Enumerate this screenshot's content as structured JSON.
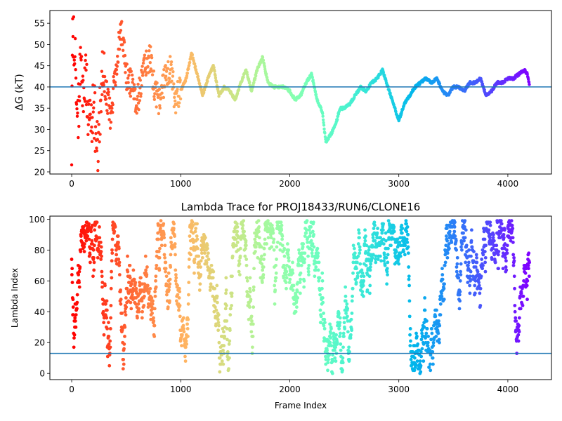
{
  "chart_data": [
    {
      "type": "scatter",
      "title": "",
      "xlabel": "",
      "ylabel": "ΔG (kT)",
      "xlim": [
        -200,
        4400
      ],
      "ylim": [
        19.5,
        58
      ],
      "xticks": [
        0,
        1000,
        2000,
        3000,
        4000
      ],
      "yticks": [
        20,
        25,
        30,
        35,
        40,
        45,
        50,
        55
      ],
      "hline": 40,
      "hline_color": "#1f77b4",
      "colormap": "rainbow (red at frame 0 through cyan to violet at last frame)",
      "n_frames": 4200,
      "grid": false,
      "series": [
        {
          "anchors": [
            [
              0,
              20
            ],
            [
              8,
              56
            ],
            [
              20,
              52
            ],
            [
              40,
              41
            ],
            [
              60,
              32
            ],
            [
              80,
              49
            ],
            [
              100,
              38
            ],
            [
              130,
              42
            ],
            [
              160,
              30
            ],
            [
              200,
              36
            ],
            [
              240,
              25
            ],
            [
              280,
              44
            ],
            [
              320,
              38
            ],
            [
              360,
              33
            ],
            [
              420,
              48
            ],
            [
              460,
              53
            ],
            [
              500,
              43
            ],
            [
              560,
              40
            ],
            [
              600,
              36
            ],
            [
              660,
              44
            ],
            [
              720,
              47
            ],
            [
              760,
              40
            ],
            [
              800,
              37
            ],
            [
              860,
              42
            ],
            [
              900,
              45
            ],
            [
              950,
              37
            ],
            [
              1000,
              39
            ],
            [
              1050,
              42
            ],
            [
              1100,
              48
            ],
            [
              1150,
              43
            ],
            [
              1200,
              38
            ],
            [
              1250,
              42
            ],
            [
              1300,
              45
            ],
            [
              1350,
              38
            ],
            [
              1400,
              40
            ],
            [
              1450,
              39
            ],
            [
              1500,
              37
            ],
            [
              1550,
              41
            ],
            [
              1600,
              44
            ],
            [
              1650,
              39
            ],
            [
              1700,
              44
            ],
            [
              1750,
              47
            ],
            [
              1800,
              41
            ],
            [
              1850,
              40
            ],
            [
              1900,
              40
            ],
            [
              1950,
              40
            ],
            [
              2000,
              39
            ],
            [
              2050,
              37
            ],
            [
              2100,
              38
            ],
            [
              2150,
              41
            ],
            [
              2200,
              43
            ],
            [
              2250,
              37
            ],
            [
              2300,
              34
            ],
            [
              2330,
              27
            ],
            [
              2380,
              29
            ],
            [
              2420,
              31
            ],
            [
              2460,
              35
            ],
            [
              2500,
              35
            ],
            [
              2550,
              36
            ],
            [
              2600,
              38
            ],
            [
              2650,
              40
            ],
            [
              2700,
              39
            ],
            [
              2750,
              41
            ],
            [
              2800,
              42
            ],
            [
              2850,
              44
            ],
            [
              2900,
              40
            ],
            [
              2950,
              36
            ],
            [
              3000,
              32
            ],
            [
              3050,
              36
            ],
            [
              3100,
              38
            ],
            [
              3150,
              40
            ],
            [
              3200,
              41
            ],
            [
              3250,
              42
            ],
            [
              3300,
              41
            ],
            [
              3350,
              42
            ],
            [
              3400,
              39
            ],
            [
              3450,
              38
            ],
            [
              3500,
              40
            ],
            [
              3550,
              40
            ],
            [
              3600,
              39
            ],
            [
              3650,
              41
            ],
            [
              3700,
              41
            ],
            [
              3750,
              42
            ],
            [
              3800,
              38
            ],
            [
              3850,
              39
            ],
            [
              3900,
              41
            ],
            [
              3950,
              41
            ],
            [
              4000,
              42
            ],
            [
              4050,
              42
            ],
            [
              4100,
              43
            ],
            [
              4150,
              44
            ],
            [
              4180,
              43
            ],
            [
              4200,
              40
            ]
          ]
        }
      ]
    },
    {
      "type": "scatter",
      "title": "Lambda Trace for PROJ18433/RUN6/CLONE16",
      "xlabel": "Frame Index",
      "ylabel": "Lambda Index",
      "xlim": [
        -200,
        4400
      ],
      "ylim": [
        -4,
        102
      ],
      "xticks": [
        0,
        1000,
        2000,
        3000,
        4000
      ],
      "yticks": [
        0,
        20,
        40,
        60,
        80,
        100
      ],
      "hline": 13,
      "hline_color": "#1f77b4",
      "colormap": "rainbow (red at frame 0 through cyan to violet at last frame)",
      "n_frames": 4200,
      "lambda_range": [
        0,
        99
      ],
      "grid": false
    }
  ]
}
